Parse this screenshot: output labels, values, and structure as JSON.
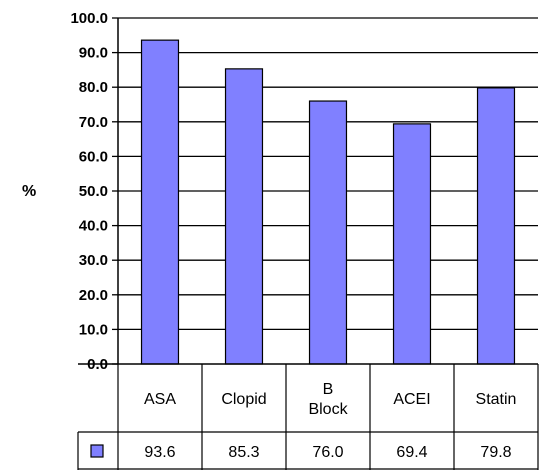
{
  "chart_data": {
    "type": "bar",
    "categories": [
      "ASA",
      "Clopid",
      "B Block",
      "ACEI",
      "Statin"
    ],
    "category_lines": [
      [
        "ASA"
      ],
      [
        "Clopid"
      ],
      [
        "B",
        "Block"
      ],
      [
        "ACEI"
      ],
      [
        "Statin"
      ]
    ],
    "series": [
      {
        "name": "",
        "values": [
          93.6,
          85.3,
          76.0,
          69.4,
          79.8
        ],
        "value_labels": [
          "93.6",
          "85.3",
          "76.0",
          "69.4",
          "79.8"
        ]
      }
    ],
    "ylabel": "%",
    "ylim": [
      0,
      100
    ],
    "yticks": [
      0,
      10,
      20,
      30,
      40,
      50,
      60,
      70,
      80,
      90,
      100
    ],
    "ytick_labels": [
      "0.0",
      "10.0",
      "20.0",
      "30.0",
      "40.0",
      "50.0",
      "60.0",
      "70.0",
      "80.0",
      "90.0",
      "100.0"
    ],
    "grid": true,
    "legend": "data-table",
    "bar_color": "#8080ff"
  }
}
